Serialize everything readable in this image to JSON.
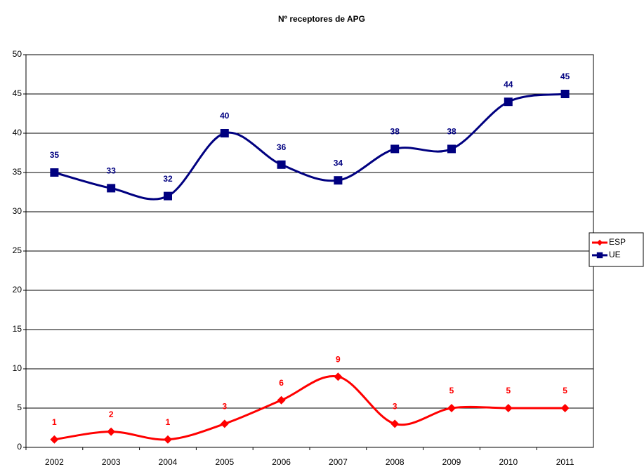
{
  "chart_data": {
    "type": "line",
    "title": "Nº receptores de APG",
    "categories": [
      "2002",
      "2003",
      "2004",
      "2005",
      "2006",
      "2007",
      "2008",
      "2009",
      "2010",
      "2011"
    ],
    "series": [
      {
        "name": "ESP",
        "color": "#ff0000",
        "marker": "diamond",
        "values": [
          1,
          2,
          1,
          3,
          6,
          9,
          3,
          5,
          5,
          5
        ]
      },
      {
        "name": "UE",
        "color": "#000080",
        "marker": "square",
        "values": [
          35,
          33,
          32,
          40,
          36,
          34,
          38,
          38,
          44,
          45
        ]
      }
    ],
    "ylim": [
      0,
      50
    ],
    "yticks": [
      0,
      5,
      10,
      15,
      20,
      25,
      30,
      35,
      40,
      45,
      50
    ],
    "grid": true,
    "smooth": true,
    "legend": "right"
  }
}
